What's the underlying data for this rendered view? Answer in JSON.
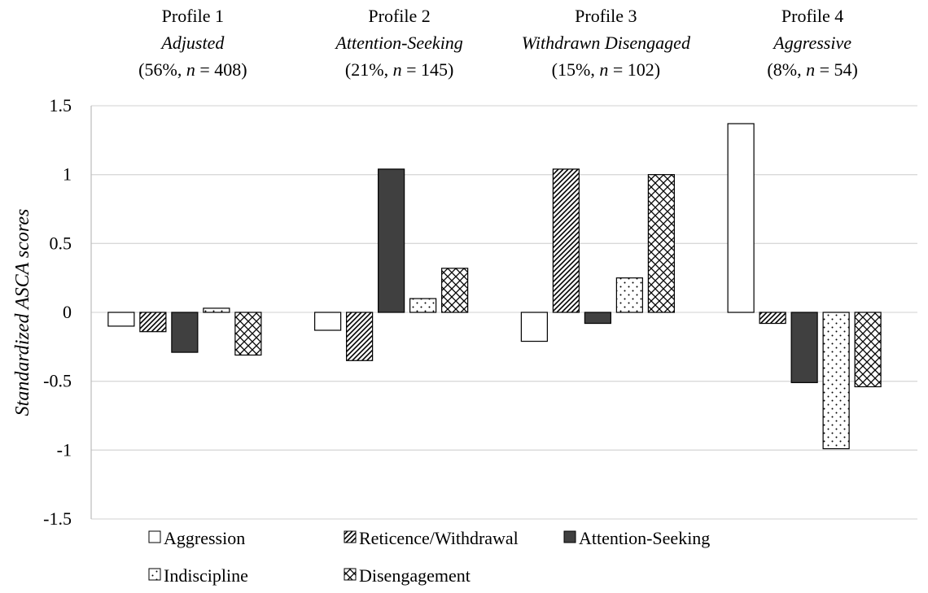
{
  "chart_data": {
    "type": "bar",
    "ylabel": "Standardized ASCA scores",
    "ylim": [
      -1.5,
      1.5
    ],
    "yticks": [
      "1.5",
      "1",
      "0.5",
      "0",
      "-0.5",
      "-1",
      "-1.5"
    ],
    "grid": true,
    "legend_position": "bottom",
    "profiles": [
      {
        "line1": "Profile 1",
        "line2": "Adjusted",
        "pct": "(56%, ",
        "n_label": "n",
        "n_value": " = 408)"
      },
      {
        "line1": "Profile 2",
        "line2": "Attention-Seeking",
        "pct": "(21%, ",
        "n_label": "n",
        "n_value": " = 145)"
      },
      {
        "line1": "Profile 3",
        "line2": "Withdrawn Disengaged",
        "pct": "(15%, ",
        "n_label": "n",
        "n_value": " = 102)"
      },
      {
        "line1": "Profile 4",
        "line2": "Aggressive",
        "pct": "(8%, ",
        "n_label": "n",
        "n_value": " = 54)"
      }
    ],
    "series": [
      {
        "name": "Aggression",
        "pattern": "white",
        "values": [
          -0.1,
          -0.13,
          -0.21,
          1.37
        ]
      },
      {
        "name": "Reticence/Withdrawal",
        "pattern": "diagonal",
        "values": [
          -0.14,
          -0.35,
          1.04,
          -0.08
        ]
      },
      {
        "name": "Attention-Seeking",
        "pattern": "solid",
        "color": "#404040",
        "values": [
          -0.29,
          1.04,
          -0.08,
          -0.51
        ]
      },
      {
        "name": "Indiscipline",
        "pattern": "dots",
        "values": [
          0.03,
          0.1,
          0.25,
          -0.99
        ]
      },
      {
        "name": "Disengagement",
        "pattern": "crosshatch",
        "values": [
          -0.31,
          0.32,
          1.0,
          -0.54
        ]
      }
    ]
  }
}
